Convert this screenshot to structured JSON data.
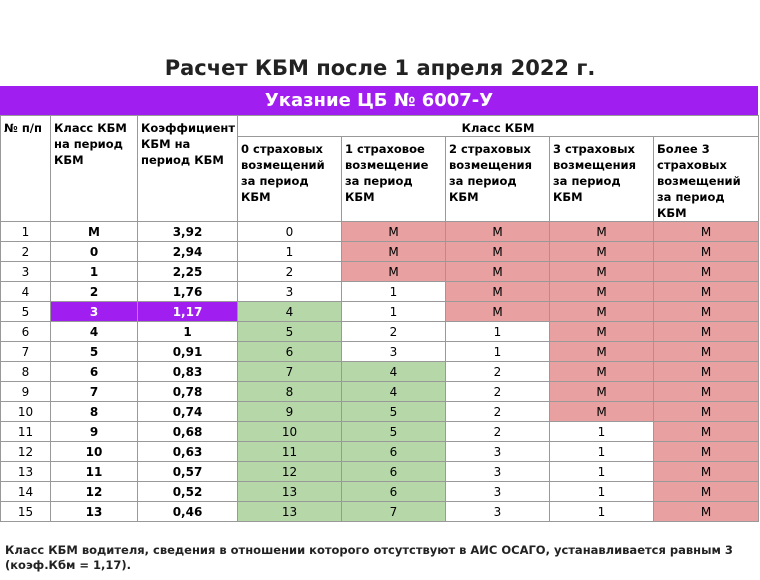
{
  "title": "Расчет КБМ после 1 апреля 2022 г.",
  "banner": "Указние ЦБ № 6007-У",
  "table": {
    "headers": [
      "№ п/п",
      "Класс КБМ на период КБМ",
      "Коэффициент КБМ на период КБМ",
      "Класс КБМ"
    ],
    "subheaders": [
      "0 страховых возмещений за период КБМ",
      "1 страховое возмещение за период КБМ",
      "2 страховых возмещения за период КБМ",
      "3 страховых возмещения за период КБМ",
      "Более 3 страховых возмещений за период КБМ"
    ],
    "rows": [
      [
        1,
        "М",
        "3,92",
        0,
        "М",
        "М",
        "М",
        "М"
      ],
      [
        2,
        0,
        "2,94",
        1,
        "М",
        "М",
        "М",
        "М"
      ],
      [
        3,
        1,
        "2,25",
        2,
        "М",
        "М",
        "М",
        "М"
      ],
      [
        4,
        2,
        "1,76",
        3,
        1,
        "М",
        "М",
        "М"
      ],
      [
        5,
        3,
        "1,17",
        4,
        1,
        "М",
        "М",
        "М"
      ],
      [
        6,
        4,
        1,
        5,
        2,
        1,
        "М",
        "М"
      ],
      [
        7,
        5,
        "0,91",
        6,
        3,
        1,
        "М",
        "М"
      ],
      [
        8,
        6,
        "0,83",
        7,
        4,
        2,
        "М",
        "М"
      ],
      [
        9,
        7,
        "0,78",
        8,
        4,
        2,
        "М",
        "М"
      ],
      [
        10,
        8,
        "0,74",
        9,
        5,
        2,
        "М",
        "М"
      ],
      [
        11,
        9,
        "0,68",
        10,
        5,
        2,
        1,
        "М"
      ],
      [
        12,
        10,
        "0,63",
        11,
        6,
        3,
        1,
        "М"
      ],
      [
        13,
        11,
        "0,57",
        12,
        6,
        3,
        1,
        "М"
      ],
      [
        14,
        12,
        "0,52",
        13,
        6,
        3,
        1,
        "М"
      ],
      [
        15,
        13,
        "0,46",
        13,
        7,
        3,
        1,
        "М"
      ]
    ]
  },
  "footnote": "Класс КБМ водителя, сведения в отношении которого отсутствуют в АИС ОСАГО, устанавливается равным 3 (коэф.Кбм = 1,17)."
}
